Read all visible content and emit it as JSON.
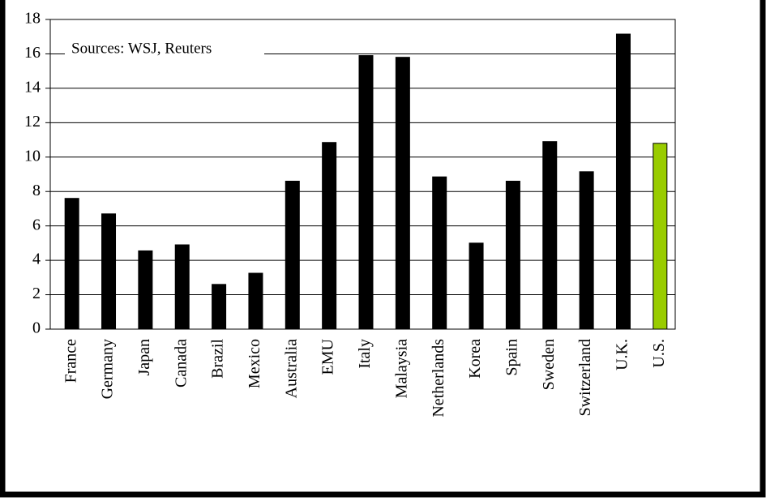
{
  "chart_data": {
    "type": "bar",
    "annotation": "Sources: WSJ, Reuters",
    "categories": [
      "France",
      "Germany",
      "Japan",
      "Canada",
      "Brazil",
      "Mexico",
      "Australia",
      "EMU",
      "Italy",
      "Malaysia",
      "Netherlands",
      "Korea",
      "Spain",
      "Sweden",
      "Switzerland",
      "U.K.",
      "U.S."
    ],
    "values": [
      7.6,
      6.7,
      4.55,
      4.9,
      2.6,
      3.25,
      8.6,
      10.85,
      15.9,
      15.8,
      8.85,
      5.0,
      8.6,
      10.9,
      9.15,
      17.15,
      10.8
    ],
    "colors": [
      "#000000",
      "#000000",
      "#000000",
      "#000000",
      "#000000",
      "#000000",
      "#000000",
      "#000000",
      "#000000",
      "#000000",
      "#000000",
      "#000000",
      "#000000",
      "#000000",
      "#000000",
      "#000000",
      "#99cc00"
    ],
    "ylim": [
      0,
      18
    ],
    "yticks": [
      0,
      2,
      4,
      6,
      8,
      10,
      12,
      14,
      16,
      18
    ],
    "grid": true
  }
}
